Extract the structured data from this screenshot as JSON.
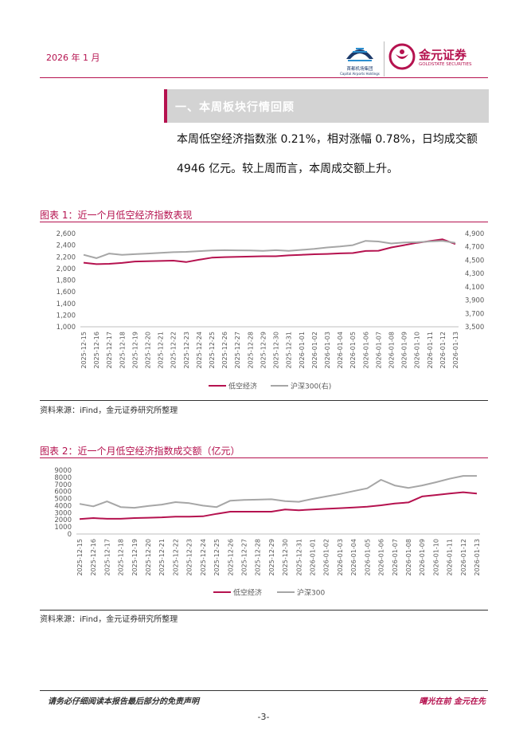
{
  "header": {
    "date": "2026 年 1 月",
    "logo1_caption": "首都机场集团",
    "logo1_caption_en": "Capital Airports Holdings",
    "logo2_name": "金元证券",
    "logo2_en": "GOLDSTATE SECURITIES"
  },
  "section": {
    "title": "一、本周板块行情回顾"
  },
  "body": {
    "line1": "本周低空经济指数涨 0.21%，相对涨幅 0.78%，日均成交额",
    "line2": "4946 亿元。较上周而言，本周成交额上升。"
  },
  "figure1": {
    "title": "图表 1：近一个月低空经济指数表现",
    "source": "资料来源：iFind，金元证券研究所整理"
  },
  "figure2": {
    "title": "图表 2：近一个月低空经济指数成交额（亿元）",
    "source": "资料来源：iFind，金元证券研究所整理"
  },
  "footer": {
    "disclaimer": "请务必仔细阅读本报告最后部分的免责声明",
    "slogan": "曙光在前 金元在先",
    "page": "-3-"
  },
  "colors": {
    "accent": "#b5124f",
    "series_primary": "#b5124f",
    "series_secondary": "#a6a6a6"
  },
  "chart_data": [
    {
      "type": "line",
      "title": "图表 1：近一个月低空经济指数表现",
      "x": [
        "2025-12-15",
        "2025-12-16",
        "2025-12-17",
        "2025-12-18",
        "2025-12-19",
        "2025-12-20",
        "2025-12-21",
        "2025-12-22",
        "2025-12-23",
        "2025-12-24",
        "2025-12-25",
        "2025-12-26",
        "2025-12-27",
        "2025-12-28",
        "2025-12-29",
        "2025-12-30",
        "2025-12-31",
        "2026-01-01",
        "2026-01-02",
        "2026-01-03",
        "2026-01-04",
        "2026-01-05",
        "2026-01-06",
        "2026-01-07",
        "2026-01-08",
        "2026-01-09",
        "2026-01-10",
        "2026-01-11",
        "2026-01-12",
        "2026-01-13"
      ],
      "left_axis": {
        "ylim": [
          1000,
          2600
        ],
        "ticks": [
          "1,000",
          "1,200",
          "1,400",
          "1,600",
          "1,800",
          "2,000",
          "2,200",
          "2,400",
          "2,600"
        ]
      },
      "right_axis": {
        "ylim": [
          3500,
          4900
        ],
        "ticks": [
          "3,500",
          "3,700",
          "3,900",
          "4,100",
          "4,300",
          "4,500",
          "4,700",
          "4,900"
        ]
      },
      "series": [
        {
          "name": "低空经济",
          "axis": "left",
          "color": "#b5124f",
          "values": [
            2100,
            2075,
            2080,
            2095,
            2120,
            2125,
            2130,
            2135,
            2110,
            2150,
            2185,
            2195,
            2200,
            2205,
            2210,
            2210,
            2225,
            2235,
            2245,
            2250,
            2260,
            2265,
            2300,
            2305,
            2360,
            2400,
            2440,
            2470,
            2500,
            2420
          ]
        },
        {
          "name": "沪深300(右)",
          "axis": "right",
          "color": "#a6a6a6",
          "values": [
            4580,
            4530,
            4600,
            4580,
            4590,
            4600,
            4610,
            4620,
            4625,
            4635,
            4645,
            4650,
            4648,
            4645,
            4640,
            4650,
            4640,
            4655,
            4670,
            4690,
            4705,
            4725,
            4790,
            4780,
            4750,
            4765,
            4770,
            4780,
            4790,
            4760
          ]
        }
      ],
      "legend": "bottom",
      "grid": false
    },
    {
      "type": "line",
      "title": "图表 2：近一个月低空经济指数成交额（亿元）",
      "x": [
        "2025-12-15",
        "2025-12-16",
        "2025-12-17",
        "2025-12-18",
        "2025-12-19",
        "2025-12-20",
        "2025-12-21",
        "2025-12-22",
        "2025-12-23",
        "2025-12-24",
        "2025-12-25",
        "2025-12-26",
        "2025-12-27",
        "2025-12-28",
        "2025-12-29",
        "2025-12-30",
        "2025-12-31",
        "2026-01-01",
        "2026-01-02",
        "2026-01-03",
        "2026-01-04",
        "2026-01-05",
        "2026-01-06",
        "2026-01-07",
        "2026-01-08",
        "2026-01-09",
        "2026-01-10",
        "2026-01-11",
        "2026-01-12",
        "2026-01-13"
      ],
      "ylim": [
        0,
        9000
      ],
      "yticks": [
        "0",
        "1000",
        "2000",
        "3000",
        "4000",
        "5000",
        "6000",
        "7000",
        "8000",
        "9000"
      ],
      "series": [
        {
          "name": "低空经济",
          "color": "#b5124f",
          "values": [
            2100,
            2250,
            2150,
            2150,
            2250,
            2300,
            2350,
            2450,
            2450,
            2500,
            2850,
            3150,
            3150,
            3150,
            3150,
            3450,
            3350,
            3450,
            3550,
            3650,
            3750,
            3850,
            4050,
            4300,
            4450,
            5300,
            5500,
            5700,
            5900,
            5700
          ]
        },
        {
          "name": "沪深300",
          "color": "#a6a6a6",
          "values": [
            4250,
            3900,
            4600,
            3800,
            3700,
            3950,
            4150,
            4500,
            4350,
            4000,
            3800,
            4700,
            4800,
            4850,
            4900,
            4650,
            4550,
            4950,
            5300,
            5650,
            6050,
            6450,
            7650,
            6850,
            6500,
            6850,
            7300,
            7800,
            8200,
            8200
          ]
        }
      ],
      "legend": "bottom",
      "grid": false
    }
  ]
}
